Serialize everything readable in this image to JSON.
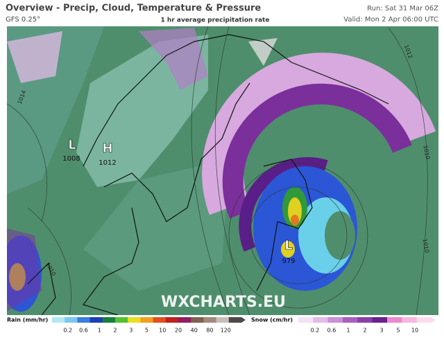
{
  "header": {
    "title": "Overview - Precip, Cloud, Temperature & Pressure",
    "model": "GFS 0.25°",
    "subtitle": "1 hr average precipitation rate",
    "run": "Run: Sat 31 Mar 06Z",
    "valid": "Valid: Mon 2 Apr 06:00 UTC"
  },
  "pressure_centers": [
    {
      "type": "L",
      "value": 1008
    },
    {
      "type": "H",
      "value": 1012
    },
    {
      "type": "L",
      "value": 979
    }
  ],
  "isobar_labels": [
    1014,
    1012,
    1010,
    1010,
    1010
  ],
  "watermark": "WXCHARTS.EU",
  "legend": {
    "rain": {
      "label": "Rain (mm/hr)",
      "ticks": [
        0.2,
        0.6,
        1,
        2,
        3,
        5,
        10,
        20,
        40,
        80,
        120
      ]
    },
    "snow": {
      "label": "Snow (cm/hr)",
      "ticks": [
        0.2,
        0.6,
        1,
        2,
        3,
        5,
        10
      ]
    }
  }
}
